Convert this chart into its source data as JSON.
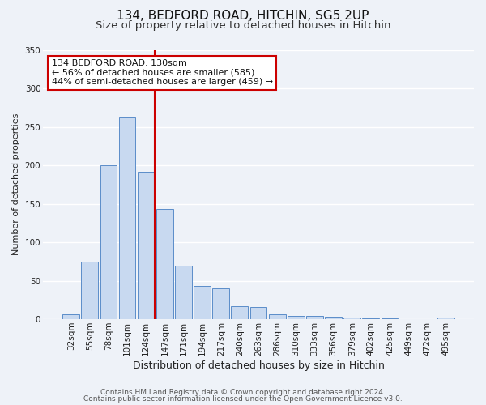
{
  "title1": "134, BEDFORD ROAD, HITCHIN, SG5 2UP",
  "title2": "Size of property relative to detached houses in Hitchin",
  "xlabel": "Distribution of detached houses by size in Hitchin",
  "ylabel": "Number of detached properties",
  "bar_labels": [
    "32sqm",
    "55sqm",
    "78sqm",
    "101sqm",
    "124sqm",
    "147sqm",
    "171sqm",
    "194sqm",
    "217sqm",
    "240sqm",
    "263sqm",
    "286sqm",
    "310sqm",
    "333sqm",
    "356sqm",
    "379sqm",
    "402sqm",
    "425sqm",
    "449sqm",
    "472sqm",
    "495sqm"
  ],
  "bar_values": [
    6,
    75,
    200,
    262,
    192,
    143,
    70,
    43,
    40,
    17,
    16,
    6,
    4,
    4,
    3,
    2,
    1,
    1,
    0,
    0,
    2
  ],
  "bar_color": "#c8d9f0",
  "bar_edge_color": "#5b8dc9",
  "vline_color": "#cc0000",
  "ylim": [
    0,
    350
  ],
  "annotation_title": "134 BEDFORD ROAD: 130sqm",
  "annotation_line1": "← 56% of detached houses are smaller (585)",
  "annotation_line2": "44% of semi-detached houses are larger (459) →",
  "annotation_box_color": "#ffffff",
  "annotation_box_edge_color": "#cc0000",
  "footer1": "Contains HM Land Registry data © Crown copyright and database right 2024.",
  "footer2": "Contains public sector information licensed under the Open Government Licence v3.0.",
  "background_color": "#eef2f8",
  "grid_color": "#ffffff",
  "title1_fontsize": 11,
  "title2_fontsize": 9.5,
  "xlabel_fontsize": 9,
  "ylabel_fontsize": 8,
  "tick_fontsize": 7.5,
  "footer_fontsize": 6.5,
  "vline_bar_index": 4
}
